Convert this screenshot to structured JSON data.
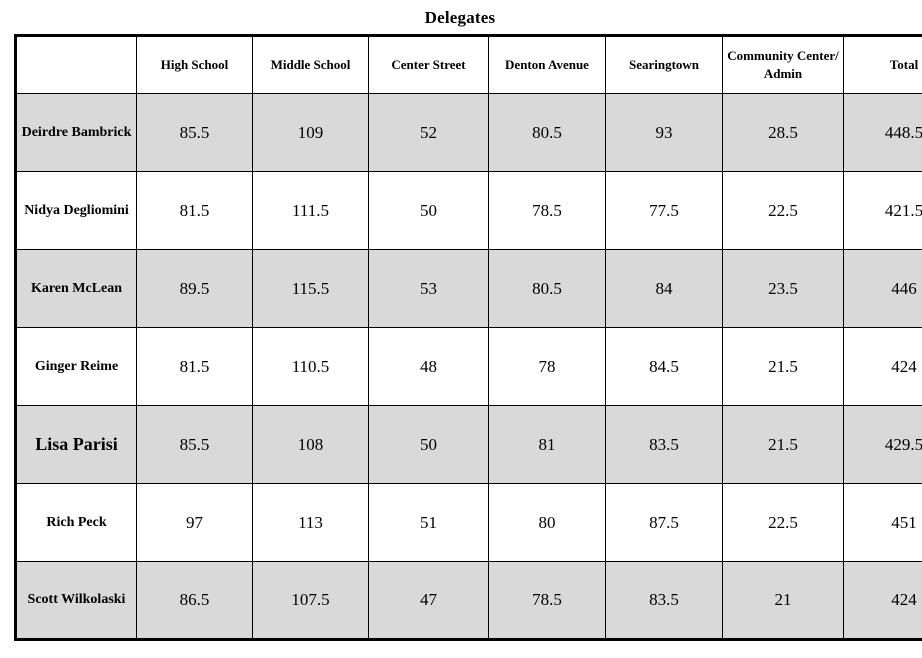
{
  "title": "Delegates",
  "table": {
    "shaded_row_color": "#d9d9d9",
    "border_color": "#000000",
    "columns": [
      "",
      "High School",
      "Middle School",
      "Center Street",
      "Denton Avenue",
      "Searingtown",
      "Community Center/ Admin",
      "Total"
    ],
    "rows": [
      {
        "name": "Deirdre Bambrick",
        "values": [
          "85.5",
          "109",
          "52",
          "80.5",
          "93",
          "28.5",
          "448.5"
        ]
      },
      {
        "name": "Nidya Degliomini",
        "values": [
          "81.5",
          "111.5",
          "50",
          "78.5",
          "77.5",
          "22.5",
          "421.5"
        ]
      },
      {
        "name": "Karen McLean",
        "values": [
          "89.5",
          "115.5",
          "53",
          "80.5",
          "84",
          "23.5",
          "446"
        ]
      },
      {
        "name": "Ginger Reime",
        "values": [
          "81.5",
          "110.5",
          "48",
          "78",
          "84.5",
          "21.5",
          "424"
        ]
      },
      {
        "name": "Lisa Parisi",
        "values": [
          "85.5",
          "108",
          "50",
          "81",
          "83.5",
          "21.5",
          "429.5"
        ]
      },
      {
        "name": "Rich Peck",
        "values": [
          "97",
          "113",
          "51",
          "80",
          "87.5",
          "22.5",
          "451"
        ]
      },
      {
        "name": "Scott Wilkolaski",
        "values": [
          "86.5",
          "107.5",
          "47",
          "78.5",
          "83.5",
          "21",
          "424"
        ]
      }
    ]
  }
}
